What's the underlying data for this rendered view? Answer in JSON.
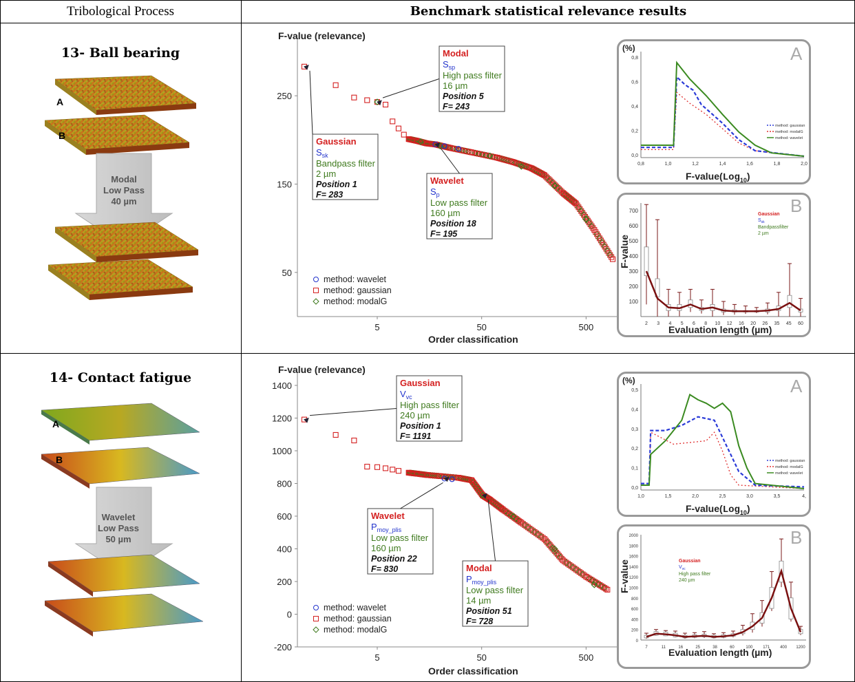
{
  "header": {
    "col1": "Tribological Process",
    "col2": "Benchmark statistical relevance results"
  },
  "rows": [
    {
      "title": "13- Ball bearing",
      "surface_labels": [
        "A",
        "B"
      ],
      "filter_arrow": [
        "Modal",
        "Low Pass",
        "40 µm"
      ],
      "main_chart": {
        "ylabel": "F-value (relevance)",
        "xlabel": "Order classification",
        "y_ticks": [
          "250",
          "150",
          "50"
        ],
        "x_ticks": [
          "5",
          "50",
          "500"
        ],
        "legend": [
          "method: wavelet",
          "method: gaussian",
          "method: modalG"
        ],
        "callouts": [
          {
            "method": "Modal",
            "param": "S",
            "sub": "sp",
            "filter": "High pass filter",
            "size": "16 µm",
            "position": "Position 5",
            "f": "F= 243"
          },
          {
            "method": "Gaussian",
            "param": "S",
            "sub": "sk",
            "filter": "Bandpass filter",
            "size": "2 µm",
            "position": "Position 1",
            "f": "F= 283"
          },
          {
            "method": "Wavelet",
            "param": "S",
            "sub": "p",
            "filter": "Low pass filter",
            "size": "160 µm",
            "position": "Position 18",
            "f": "F= 195"
          }
        ]
      },
      "inset_a": {
        "letter": "A",
        "ylabel": "(%)",
        "xlabel": "F-value(",
        "xlabel_log": "Log",
        "xlabel_sub": "10",
        "y_ticks": [
          "0,8",
          "0,6",
          "0,4",
          "0,2",
          "0,0"
        ],
        "x_ticks": [
          "0,8",
          "1,0",
          "1,2",
          "1,4",
          "1,6",
          "1,8",
          "2,0"
        ],
        "legend": [
          "method: gaussian",
          "method: modalG",
          "method: wavelet"
        ]
      },
      "inset_b": {
        "letter": "B",
        "ylabel": "F-value",
        "xlabel": "Evaluation length (µm)",
        "y_ticks": [
          "700",
          "600",
          "500",
          "400",
          "300",
          "200",
          "100"
        ],
        "x_ticks": [
          "2",
          "3",
          "4",
          "5",
          "6",
          "8",
          "10",
          "12",
          "16",
          "20",
          "26",
          "35",
          "45",
          "60"
        ],
        "legend": [
          "Gaussian",
          "S",
          "sk",
          "Bandpassfilter",
          "2 µm"
        ]
      }
    },
    {
      "title": "14- Contact fatigue",
      "surface_labels": [
        "A",
        "B"
      ],
      "filter_arrow": [
        "Wavelet",
        "Low Pass",
        "50 µm"
      ],
      "main_chart": {
        "ylabel": "F-value (relevance)",
        "xlabel": "Order classification",
        "y_ticks": [
          "1400",
          "1200",
          "1000",
          "800",
          "600",
          "400",
          "200",
          "0",
          "-200"
        ],
        "x_ticks": [
          "5",
          "50",
          "500"
        ],
        "legend": [
          "method: wavelet",
          "method: gaussian",
          "method: modalG"
        ],
        "callouts": [
          {
            "method": "Gaussian",
            "param": "V",
            "sub": "vc",
            "filter": "High pass filter",
            "size": "240 µm",
            "position": "Position 1",
            "f": "F= 1191"
          },
          {
            "method": "Wavelet",
            "param": "P",
            "sub": "moy_plis",
            "filter": "Low pass filter",
            "size": "160 µm",
            "position": "Position 22",
            "f": "F= 830"
          },
          {
            "method": "Modal",
            "param": "P",
            "sub": "moy_plis",
            "filter": "Low pass filter",
            "size": "14 µm",
            "position": "Position 51",
            "f": "F= 728"
          }
        ]
      },
      "inset_a": {
        "letter": "A",
        "ylabel": "(%)",
        "xlabel": "F-value(",
        "xlabel_log": "Log",
        "xlabel_sub": "10",
        "y_ticks": [
          "0,5",
          "0,4",
          "0,3",
          "0,2",
          "0,1",
          "0,0"
        ],
        "x_ticks": [
          "1,0",
          "1,5",
          "2,0",
          "2,5",
          "3,0",
          "3,5",
          "4,"
        ],
        "legend": [
          "method: gaussian",
          "method: modalG",
          "method: wavelet"
        ]
      },
      "inset_b": {
        "letter": "B",
        "ylabel": "F-value",
        "xlabel": "Evaluation length (µm)",
        "y_ticks": [
          "2000",
          "1800",
          "1600",
          "1400",
          "1200",
          "1000",
          "800",
          "600",
          "400",
          "200",
          "0"
        ],
        "x_ticks": [
          "7",
          "11",
          "16",
          "25",
          "38",
          "60",
          "100",
          "171",
          "400",
          "1200"
        ],
        "legend": [
          "Gaussian",
          "V",
          "vc",
          "High pass filter",
          "240 µm"
        ]
      }
    }
  ],
  "colors": {
    "red": "#d42020",
    "blue": "#2233cc",
    "green": "#3f7a1e",
    "darkred": "#7a1010",
    "border": "#999999"
  },
  "chart_data": [
    {
      "type": "scatter",
      "title": "",
      "xlabel": "Order classification",
      "ylabel": "F-value (relevance)",
      "x_scale": "log",
      "series": [
        {
          "name": "method: gaussian",
          "x": [
            1,
            2,
            3,
            4,
            5,
            6,
            7,
            8,
            9,
            10,
            12,
            15,
            18,
            25,
            40,
            70,
            100,
            150,
            200,
            300,
            400,
            600,
            900
          ],
          "values": [
            283,
            262,
            248,
            245,
            243,
            240,
            221,
            213,
            206,
            201,
            199,
            196,
            195,
            191,
            186,
            180,
            175,
            168,
            160,
            140,
            128,
            98,
            65
          ]
        },
        {
          "name": "method: modalG",
          "x": [
            5,
            13,
            20,
            60,
            120,
            250,
            500
          ],
          "values": [
            243,
            198,
            193,
            182,
            170,
            148,
            110
          ]
        },
        {
          "name": "method: wavelet",
          "x": [
            18,
            22,
            30
          ],
          "values": [
            195,
            193,
            190
          ]
        }
      ],
      "ylim": [
        0,
        300
      ]
    },
    {
      "type": "scatter",
      "title": "",
      "xlabel": "Order classification",
      "ylabel": "F-value (relevance)",
      "x_scale": "log",
      "series": [
        {
          "name": "method: gaussian",
          "x": [
            1,
            2,
            3,
            4,
            5,
            6,
            7,
            8,
            10,
            12,
            15,
            20,
            30,
            40,
            51,
            60,
            80,
            120,
            200,
            300,
            500,
            800
          ],
          "values": [
            1191,
            1097,
            1063,
            903,
            900,
            893,
            885,
            877,
            866,
            860,
            852,
            845,
            835,
            820,
            728,
            700,
            640,
            560,
            460,
            330,
            230,
            150
          ]
        },
        {
          "name": "method: modalG",
          "x": [
            51,
            100,
            250,
            600
          ],
          "values": [
            728,
            600,
            400,
            180
          ]
        },
        {
          "name": "method: wavelet",
          "x": [
            22,
            26
          ],
          "values": [
            830,
            826
          ]
        }
      ],
      "ylim": [
        -200,
        1400
      ]
    }
  ]
}
